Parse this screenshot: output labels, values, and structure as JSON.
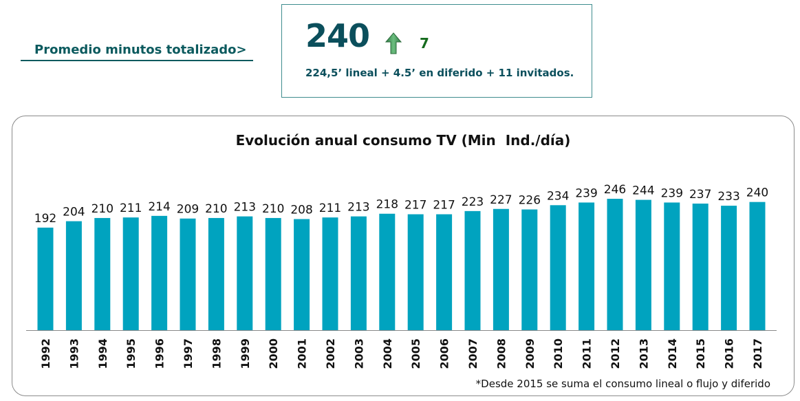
{
  "header": {
    "label": "Promedio minutos totalizado>"
  },
  "stat": {
    "value": "240",
    "change": "7",
    "change_icon": "arrow-up-icon",
    "breakdown": "224,5’ lineal + 4.5’ en diferido + 11 invitados.",
    "arrow_color": "#4a9b5e"
  },
  "chart_data": {
    "type": "bar",
    "title": "Evolución anual consumo TV (Min  Ind./día)",
    "categories": [
      "1992",
      "1993",
      "1994",
      "1995",
      "1996",
      "1997",
      "1998",
      "1999",
      "2000",
      "2001",
      "2002",
      "2003",
      "2004",
      "2005",
      "2006",
      "2007",
      "2008",
      "2009",
      "2010",
      "2011",
      "2012",
      "2013",
      "2014",
      "2015",
      "2016",
      "2017"
    ],
    "values": [
      192,
      204,
      210,
      211,
      214,
      209,
      210,
      213,
      210,
      208,
      211,
      213,
      218,
      217,
      217,
      223,
      227,
      226,
      234,
      239,
      246,
      244,
      239,
      237,
      233,
      240
    ],
    "ylim": [
      0,
      246
    ],
    "bar_color": "#00a3bf",
    "grid": false,
    "footnote": "*Desde 2015 se suma el consumo lineal o flujo y diferido"
  }
}
